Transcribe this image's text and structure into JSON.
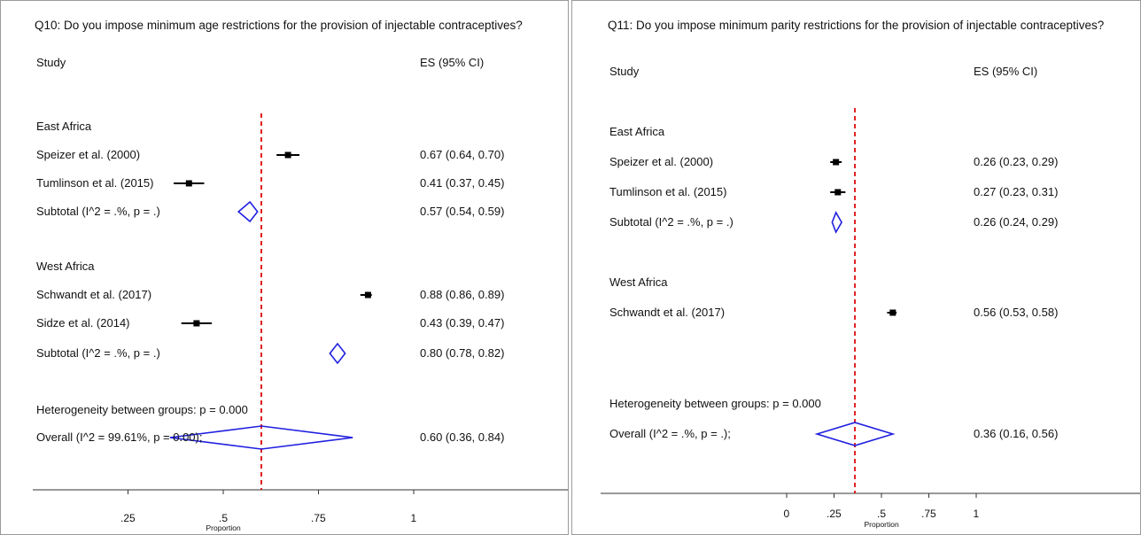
{
  "chart_data": [
    {
      "type": "forest",
      "title": "Q10: Do you impose minimum age restrictions for the provision of injectable contraceptives?",
      "col_study": "Study",
      "col_es": "ES (95% CI)",
      "xlabel": "Proportion",
      "xticks": [
        ".25",
        ".5",
        ".75",
        "1"
      ],
      "xtick_values": [
        0.25,
        0.5,
        0.75,
        1
      ],
      "xlim": [
        0.0,
        1.0
      ],
      "reference_line": 0.6,
      "rows": [
        {
          "kind": "group",
          "label": "East Africa"
        },
        {
          "kind": "study",
          "label": "Speizer et al. (2000)",
          "es": 0.67,
          "lo": 0.64,
          "hi": 0.7,
          "text": "0.67 (0.64, 0.70)"
        },
        {
          "kind": "study",
          "label": "Tumlinson et al. (2015)",
          "es": 0.41,
          "lo": 0.37,
          "hi": 0.45,
          "text": "0.41 (0.37, 0.45)"
        },
        {
          "kind": "subtotal",
          "label": "Subtotal  (I^2 = .%, p = .)",
          "es": 0.57,
          "lo": 0.54,
          "hi": 0.59,
          "text": "0.57 (0.54, 0.59)"
        },
        {
          "kind": "group",
          "label": "West Africa"
        },
        {
          "kind": "study",
          "label": "Schwandt et al. (2017)",
          "es": 0.88,
          "lo": 0.86,
          "hi": 0.89,
          "text": "0.88 (0.86, 0.89)"
        },
        {
          "kind": "study",
          "label": "Sidze et al. (2014)",
          "es": 0.43,
          "lo": 0.39,
          "hi": 0.47,
          "text": "0.43 (0.39, 0.47)"
        },
        {
          "kind": "subtotal",
          "label": "Subtotal  (I^2 = .%, p = .)",
          "es": 0.8,
          "lo": 0.78,
          "hi": 0.82,
          "text": "0.80 (0.78, 0.82)"
        },
        {
          "kind": "note",
          "label": "Heterogeneity between groups: p = 0.000"
        },
        {
          "kind": "overall",
          "label": "Overall  (I^2 = 99.61%, p = 0.00);",
          "es": 0.6,
          "lo": 0.36,
          "hi": 0.84,
          "text": "0.60 (0.36, 0.84)"
        }
      ]
    },
    {
      "type": "forest",
      "title": "Q11: Do you impose minimum parity restrictions for the provision of injectable contraceptives?",
      "col_study": "Study",
      "col_es": "ES (95% CI)",
      "xlabel": "Proportion",
      "xticks": [
        "0",
        ".25",
        ".5",
        ".75",
        "1"
      ],
      "xtick_values": [
        0,
        0.25,
        0.5,
        0.75,
        1
      ],
      "xlim": [
        0.0,
        1.0
      ],
      "reference_line": 0.36,
      "rows": [
        {
          "kind": "group",
          "label": "East Africa"
        },
        {
          "kind": "study",
          "label": "Speizer et al. (2000)",
          "es": 0.26,
          "lo": 0.23,
          "hi": 0.29,
          "text": "0.26 (0.23, 0.29)"
        },
        {
          "kind": "study",
          "label": "Tumlinson et al. (2015)",
          "es": 0.27,
          "lo": 0.23,
          "hi": 0.31,
          "text": "0.27 (0.23, 0.31)"
        },
        {
          "kind": "subtotal",
          "label": "Subtotal  (I^2 = .%, p = .)",
          "es": 0.26,
          "lo": 0.24,
          "hi": 0.29,
          "text": "0.26 (0.24, 0.29)"
        },
        {
          "kind": "group",
          "label": "West Africa"
        },
        {
          "kind": "study",
          "label": "Schwandt et al. (2017)",
          "es": 0.56,
          "lo": 0.53,
          "hi": 0.58,
          "text": "0.56 (0.53, 0.58)"
        },
        {
          "kind": "note",
          "label": "Heterogeneity between groups: p = 0.000"
        },
        {
          "kind": "overall",
          "label": "Overall  (I^2 = .%, p = .);",
          "es": 0.36,
          "lo": 0.16,
          "hi": 0.56,
          "text": "0.36 (0.16, 0.56)"
        }
      ]
    }
  ],
  "colors": {
    "marker": "#000000",
    "diamond": "#1f1fe0",
    "reference_line": "#e02020",
    "axis": "#333333"
  }
}
